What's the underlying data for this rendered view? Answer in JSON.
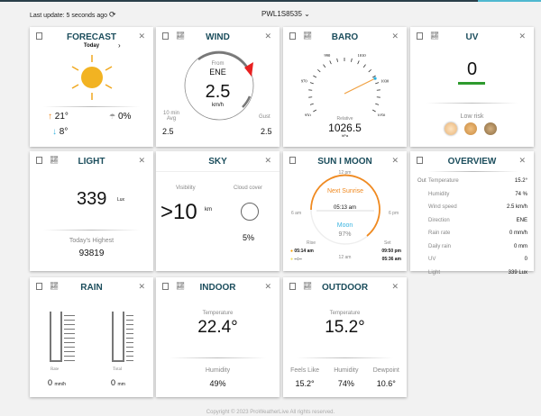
{
  "header": {
    "last_update": "Last update: 5 seconds ago",
    "station": "PWL1S8535"
  },
  "forecast": {
    "title": "FORECAST",
    "day": "Today",
    "high": "21°",
    "low": "8°",
    "rain_chance": "0%",
    "icon": "sun-icon"
  },
  "wind": {
    "title": "WIND",
    "from_label": "From",
    "direction": "ENE",
    "speed": "2.5",
    "unit": "km/h",
    "avg_label": "10 min Avg",
    "avg": "2.5",
    "gust_label": "Gust",
    "gust": "2.5"
  },
  "baro": {
    "title": "BARO",
    "ticks": [
      "950",
      "970",
      "990",
      "1010",
      "1030",
      "1050"
    ],
    "type": "Relative",
    "value": "1026.5",
    "unit": "hPa"
  },
  "uv": {
    "title": "UV",
    "value": "0",
    "risk": "Low risk",
    "color": "#2e9a2e"
  },
  "light": {
    "title": "LIGHT",
    "value": "339",
    "unit": "Lux",
    "highest_label": "Today's Highest",
    "highest": "93819"
  },
  "sky": {
    "title": "SKY",
    "visibility_label": "Visibility",
    "visibility": ">10",
    "visibility_unit": "km",
    "cloud_label": "Cloud cover",
    "cloud": "5%"
  },
  "sunmoon": {
    "title": "SUN I MOON",
    "t12pm": "12 pm",
    "t6am": "6 am",
    "t6pm": "6 pm",
    "t12am": "12 am",
    "next_label": "Next Sunrise",
    "next_time": "05:13 am",
    "moon_label": "Moon",
    "moon_pct": "97%",
    "rise_label": "Rise",
    "set_label": "Set",
    "sun_rise": "05:14 am",
    "sun_set": "09:50 pm",
    "moon_rise": "--:--",
    "moon_set": "05:36 am"
  },
  "overview": {
    "title": "OVERVIEW",
    "out_label": "Out",
    "rows": [
      {
        "k": "Temperature",
        "v": "15.2°"
      },
      {
        "k": "Humidity",
        "v": "74 %"
      },
      {
        "k": "Wind speed",
        "v": "2.5 km/h"
      },
      {
        "k": "Direction",
        "v": "ENE"
      },
      {
        "k": "Rain rate",
        "v": "0 mm/h"
      },
      {
        "k": "Daily rain",
        "v": "0 mm"
      },
      {
        "k": "UV",
        "v": "0"
      },
      {
        "k": "Light",
        "v": "339 Lux"
      }
    ]
  },
  "rain": {
    "title": "RAIN",
    "rate_label": "Rate",
    "rate": "0",
    "rate_unit": "mm/h",
    "total_label": "Total",
    "total": "0",
    "total_unit": "mm",
    "rate_ticks": [
      "50",
      "40",
      "30",
      "20",
      "10",
      "0"
    ],
    "total_ticks": [
      "100",
      "50",
      "0"
    ]
  },
  "indoor": {
    "title": "INDOOR",
    "temp_label": "Temperature",
    "temp": "22.4°",
    "hum_label": "Humidity",
    "hum": "49%"
  },
  "outdoor": {
    "title": "OUTDOOR",
    "temp_label": "Temperature",
    "temp": "15.2°",
    "feels_label": "Feels Like",
    "feels": "15.2°",
    "hum_label": "Humidity",
    "hum": "74%",
    "dew_label": "Dewpoint",
    "dew": "10.6°"
  },
  "footer": "Copyright © 2023 ProWeatherLive All rights reserved."
}
